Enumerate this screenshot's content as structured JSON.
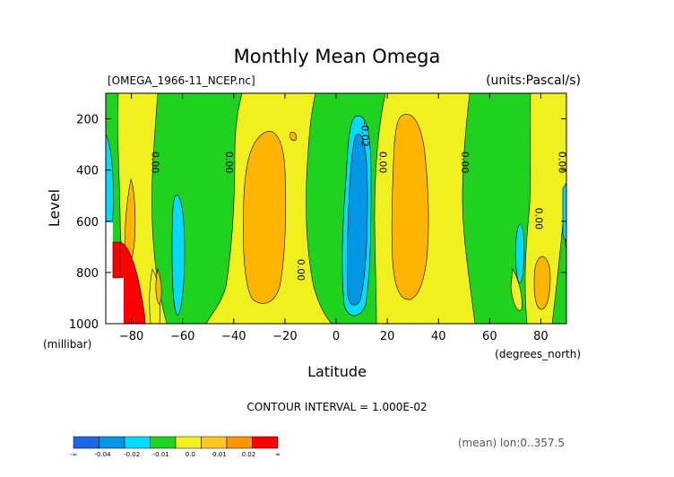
{
  "chart_data": {
    "type": "heatmap",
    "title": "Monthly Mean Omega",
    "file_label": "[OMEGA_1966-11_NCEP.nc]",
    "units_label": "(units:Pascal/s)",
    "xlabel": "Latitude",
    "x_units": "(degrees_north)",
    "ylabel": "Level",
    "y_units": "(millibar)",
    "xlim": [
      -90,
      90
    ],
    "ylim": [
      1000,
      100
    ],
    "x_ticks": [
      -80,
      -60,
      -40,
      -20,
      0,
      20,
      40,
      60,
      80
    ],
    "y_ticks": [
      200,
      400,
      600,
      800,
      1000
    ],
    "contour_interval_text": "CONTOUR INTERVAL = 1.000E-02",
    "mean_text": "(mean) lon:0..357.5",
    "contour_labels": [
      {
        "text": "0.00",
        "lat": -72,
        "level": 370
      },
      {
        "text": "0.00",
        "lat": -43,
        "level": 370
      },
      {
        "text": "0.00",
        "lat": -15,
        "level": 790
      },
      {
        "text": "-0.02",
        "lat": 10,
        "level": 260
      },
      {
        "text": "0.00",
        "lat": 17,
        "level": 370
      },
      {
        "text": "0.00",
        "lat": 49,
        "level": 370
      },
      {
        "text": "0.00",
        "lat": 78,
        "level": 590
      },
      {
        "text": "0.00",
        "lat": 87,
        "level": 370
      }
    ],
    "legend": {
      "labels": [
        "-∞",
        "-0.04",
        "-0.02",
        "-0.01",
        "0.0",
        "0.01",
        "0.02",
        "∞"
      ],
      "colors": [
        "#1e64e6",
        "#0096e6",
        "#00dcff",
        "#1ed21e",
        "#f0f01e",
        "#ffc81e",
        "#ff9600",
        "#ff0000"
      ]
    },
    "bins": [
      {
        "range": "< -0.02",
        "color": "#0096e6"
      },
      {
        "range": "-0.02 to -0.01",
        "color": "#00dcff"
      },
      {
        "range": "-0.01 to 0.00",
        "color": "#1ed21e"
      },
      {
        "range": "0.00 to 0.01",
        "color": "#f0f01e"
      },
      {
        "range": "0.01 to 0.02",
        "color": "#ffb400"
      },
      {
        "range": "> 0.02",
        "color": "#ff0000"
      }
    ],
    "grid": false
  }
}
